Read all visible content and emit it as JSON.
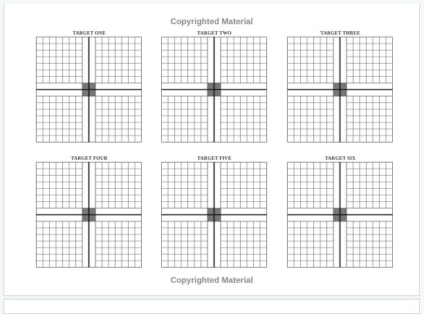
{
  "watermark_top": "Copyrighted Material",
  "watermark_bottom": "Copyrighted Material",
  "targets": [
    {
      "title": "TARGET ONE"
    },
    {
      "title": "TARGET TWO"
    },
    {
      "title": "TARGET THREE"
    },
    {
      "title": "TARGET FOUR"
    },
    {
      "title": "TARGET FIVE"
    },
    {
      "title": "TARGET SIX"
    }
  ],
  "colors": {
    "grid": "#555555",
    "center_fill": "#777777",
    "watermark": "#888888"
  }
}
